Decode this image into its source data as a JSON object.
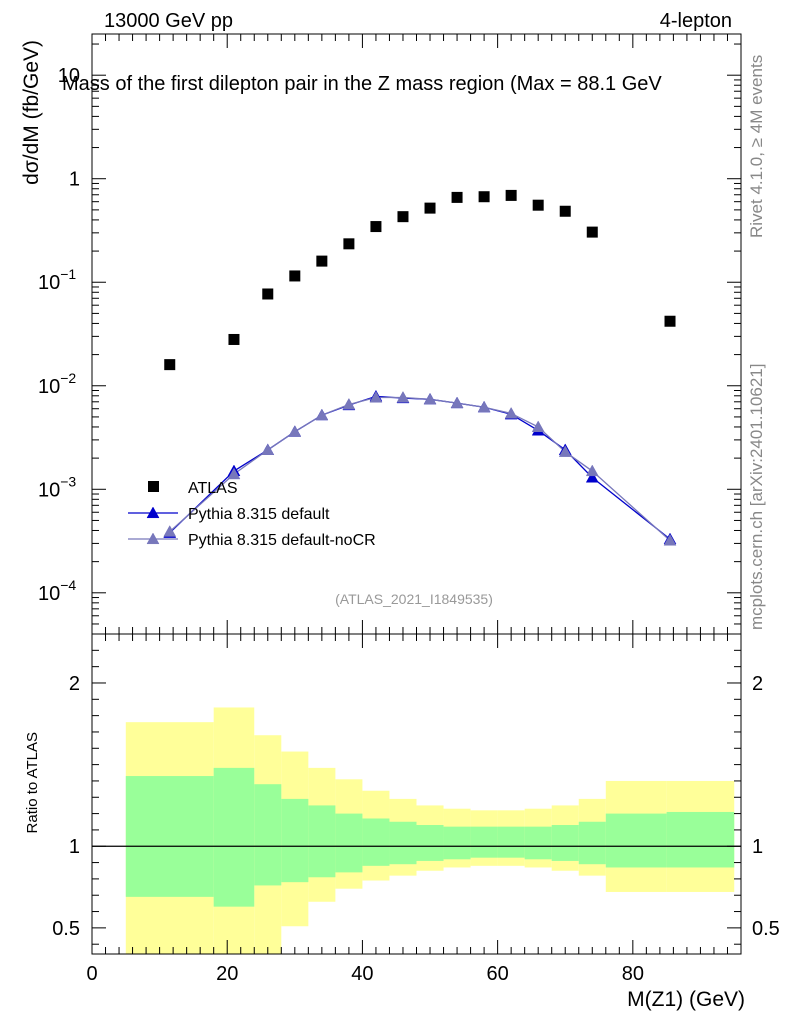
{
  "header": {
    "energy_label": "13000 GeV pp",
    "process_label": "4-lepton",
    "title": "Mass of the first dilepton pair in the Z mass region (Max = 88.1 GeV"
  },
  "side_labels": {
    "rivet": "Rivet 4.1.0, ≥ 4M events",
    "mcplots": "mcplots.cern.ch [arXiv:2401.10621]"
  },
  "analysis_label": "(ATLAS_2021_I1849535)",
  "colors": {
    "data": "#000000",
    "pythia_default": "#0000cc",
    "pythia_nocr": "#7777bb",
    "band_outer": "#ffff99",
    "band_inner": "#99ff99"
  },
  "chart_data": [
    {
      "type": "scatter",
      "scale": "log",
      "ylabel": "dσ/dM (fb/GeV)",
      "xlabel": "",
      "xlim": [
        0,
        96
      ],
      "ylim": [
        4e-05,
        25
      ],
      "y_ticks": [
        {
          "value": 10,
          "base": "10",
          "exp": ""
        },
        {
          "value": 1,
          "base": "1",
          "exp": ""
        },
        {
          "value": 0.1,
          "base": "10",
          "exp": "−1"
        },
        {
          "value": 0.01,
          "base": "10",
          "exp": "−2"
        },
        {
          "value": 0.001,
          "base": "10",
          "exp": "−3"
        },
        {
          "value": 0.0001,
          "base": "10",
          "exp": "−4"
        }
      ],
      "legend": {
        "position": "bottom-left",
        "entries": [
          "ATLAS",
          "Pythia 8.315 default",
          "Pythia 8.315 default-noCR"
        ]
      },
      "series": [
        {
          "name": "ATLAS",
          "marker": "square",
          "x": [
            11.5,
            21,
            26,
            30,
            34,
            38,
            42,
            46,
            50,
            54,
            58,
            62,
            66,
            70,
            74,
            85.5
          ],
          "y": [
            0.016,
            0.028,
            0.077,
            0.115,
            0.16,
            0.235,
            0.345,
            0.43,
            0.52,
            0.66,
            0.67,
            0.69,
            0.555,
            0.485,
            0.305,
            0.042
          ]
        },
        {
          "name": "Pythia 8.315 default",
          "marker": "triangle",
          "x": [
            11.5,
            21,
            26,
            30,
            34,
            38,
            42,
            46,
            50,
            54,
            58,
            62,
            66,
            70,
            74,
            85.5
          ],
          "y": [
            0.00038,
            0.0015,
            0.0024,
            0.0036,
            0.0052,
            0.0065,
            0.0079,
            0.0076,
            0.0074,
            0.0068,
            0.0062,
            0.0053,
            0.0037,
            0.0024,
            0.0013,
            0.00033
          ]
        },
        {
          "name": "Pythia 8.315 default-noCR",
          "marker": "triangle",
          "x": [
            11.5,
            21,
            26,
            30,
            34,
            38,
            42,
            46,
            50,
            54,
            58,
            62,
            66,
            70,
            74,
            85.5
          ],
          "y": [
            0.00039,
            0.0014,
            0.0024,
            0.0036,
            0.0052,
            0.0066,
            0.0077,
            0.0077,
            0.0074,
            0.0068,
            0.0062,
            0.0054,
            0.004,
            0.0023,
            0.0015,
            0.00032
          ]
        }
      ]
    },
    {
      "type": "area",
      "ylabel": "Ratio to ATLAS",
      "xlabel": "M(Z1) (GeV)",
      "xlim": [
        0,
        96
      ],
      "ylim": [
        0.34,
        2.3
      ],
      "x_ticks": [
        0,
        20,
        40,
        60,
        80
      ],
      "y_ticks": [
        0.5,
        1,
        2
      ],
      "reference_line": 1,
      "bins": [
        {
          "lo": 5,
          "hi": 18,
          "outer": [
            0.34,
            1.76
          ],
          "inner": [
            0.69,
            1.43
          ]
        },
        {
          "lo": 18,
          "hi": 24,
          "outer": [
            0.34,
            1.85
          ],
          "inner": [
            0.63,
            1.48
          ]
        },
        {
          "lo": 24,
          "hi": 28,
          "outer": [
            0.34,
            1.68
          ],
          "inner": [
            0.76,
            1.38
          ]
        },
        {
          "lo": 28,
          "hi": 32,
          "outer": [
            0.51,
            1.58
          ],
          "inner": [
            0.78,
            1.29
          ]
        },
        {
          "lo": 32,
          "hi": 36,
          "outer": [
            0.66,
            1.48
          ],
          "inner": [
            0.81,
            1.25
          ]
        },
        {
          "lo": 36,
          "hi": 40,
          "outer": [
            0.74,
            1.41
          ],
          "inner": [
            0.84,
            1.2
          ]
        },
        {
          "lo": 40,
          "hi": 44,
          "outer": [
            0.79,
            1.34
          ],
          "inner": [
            0.88,
            1.17
          ]
        },
        {
          "lo": 44,
          "hi": 48,
          "outer": [
            0.82,
            1.29
          ],
          "inner": [
            0.89,
            1.15
          ]
        },
        {
          "lo": 48,
          "hi": 52,
          "outer": [
            0.85,
            1.25
          ],
          "inner": [
            0.91,
            1.13
          ]
        },
        {
          "lo": 52,
          "hi": 56,
          "outer": [
            0.87,
            1.23
          ],
          "inner": [
            0.92,
            1.12
          ]
        },
        {
          "lo": 56,
          "hi": 60,
          "outer": [
            0.88,
            1.22
          ],
          "inner": [
            0.93,
            1.12
          ]
        },
        {
          "lo": 60,
          "hi": 64,
          "outer": [
            0.88,
            1.22
          ],
          "inner": [
            0.93,
            1.12
          ]
        },
        {
          "lo": 64,
          "hi": 68,
          "outer": [
            0.87,
            1.23
          ],
          "inner": [
            0.92,
            1.12
          ]
        },
        {
          "lo": 68,
          "hi": 72,
          "outer": [
            0.85,
            1.25
          ],
          "inner": [
            0.91,
            1.13
          ]
        },
        {
          "lo": 72,
          "hi": 76,
          "outer": [
            0.82,
            1.29
          ],
          "inner": [
            0.89,
            1.15
          ]
        },
        {
          "lo": 76,
          "hi": 85,
          "outer": [
            0.72,
            1.4
          ],
          "inner": [
            0.87,
            1.2
          ]
        },
        {
          "lo": 85,
          "hi": 95,
          "outer": [
            0.72,
            1.4
          ],
          "inner": [
            0.87,
            1.21
          ]
        }
      ]
    }
  ]
}
